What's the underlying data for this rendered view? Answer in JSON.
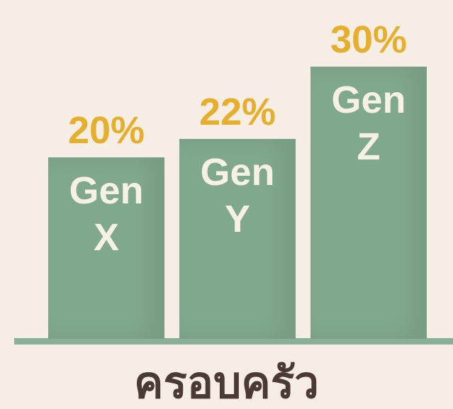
{
  "chart_data": {
    "type": "bar",
    "categories": [
      "Gen X",
      "Gen Y",
      "Gen Z"
    ],
    "values": [
      20,
      22,
      30
    ],
    "value_labels": [
      "20%",
      "22%",
      "30%"
    ],
    "color": "#7fa88c",
    "x_label": "ครอบครัว"
  }
}
